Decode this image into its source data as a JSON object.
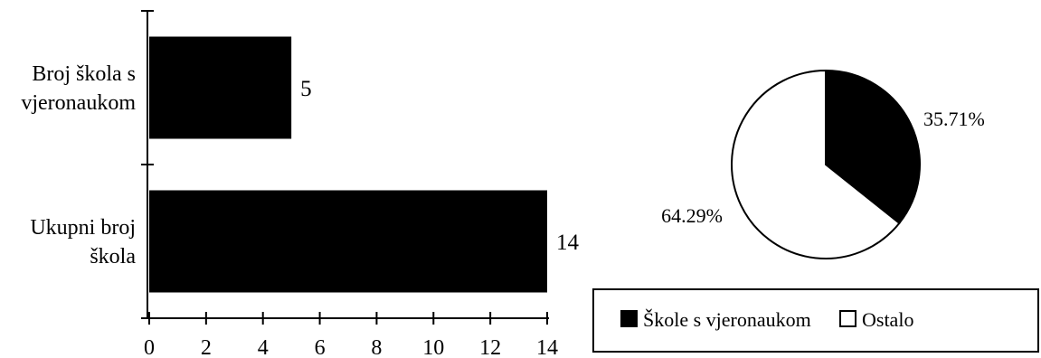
{
  "chart_data": [
    {
      "type": "bar",
      "orientation": "horizontal",
      "categories": [
        [
          "Broj škola s",
          "vjeronaukom"
        ],
        [
          "Ukupni broj",
          "škola"
        ]
      ],
      "values": [
        5,
        14
      ],
      "data_labels": [
        "5",
        "14"
      ],
      "xlim": [
        0,
        14
      ],
      "xticks": [
        "0",
        "2",
        "4",
        "6",
        "8",
        "10",
        "12",
        "14"
      ],
      "grid": false,
      "colors": {
        "bar": "#000000"
      }
    },
    {
      "type": "pie",
      "slices": [
        {
          "label": "Škole s vjeronaukom",
          "value": 35.71,
          "data_label": "35.71%",
          "color": "#000000"
        },
        {
          "label": "Ostalo",
          "value": 64.29,
          "data_label": "64.29%",
          "color": "#ffffff"
        }
      ],
      "legend": {
        "placement": "bottom",
        "entries": [
          "Škole s vjeronaukom",
          "Ostalo"
        ]
      }
    }
  ]
}
